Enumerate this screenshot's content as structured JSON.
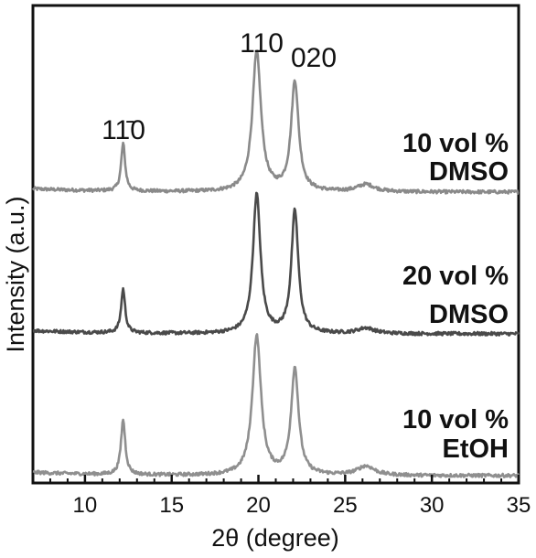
{
  "chart_data": {
    "type": "line",
    "xlabel": "2θ (degree)",
    "ylabel": "Intensity (a.u.)",
    "xlim": [
      7,
      35
    ],
    "x_ticks": [
      10,
      15,
      20,
      25,
      30,
      35
    ],
    "y_ticks_shown": false,
    "grid": false,
    "peak_labels": [
      {
        "text": "11̄0",
        "x": 12.2
      },
      {
        "text": "110",
        "x": 19.9
      },
      {
        "text": "020",
        "x": 22.1
      }
    ],
    "series": [
      {
        "label_line1": "10 vol %",
        "label_line2": "DMSO",
        "color": "#8a8a8a",
        "baseline": 0,
        "peaks": [
          {
            "x": 12.2,
            "height": 0.26,
            "width": 0.14
          },
          {
            "x": 19.9,
            "height": 0.76,
            "width": 0.3
          },
          {
            "x": 22.1,
            "height": 0.6,
            "width": 0.26
          },
          {
            "x": 26.2,
            "height": 0.04,
            "width": 0.6
          }
        ]
      },
      {
        "label_line1": "20 vol %",
        "label_line2": "DMSO",
        "color": "#4a4a4a",
        "baseline": 0,
        "peaks": [
          {
            "x": 12.2,
            "height": 0.24,
            "width": 0.14
          },
          {
            "x": 19.9,
            "height": 0.76,
            "width": 0.26
          },
          {
            "x": 22.1,
            "height": 0.67,
            "width": 0.24
          },
          {
            "x": 26.2,
            "height": 0.03,
            "width": 0.6
          }
        ]
      },
      {
        "label_line1": "10 vol %",
        "label_line2": "EtOH",
        "color": "#8f8f8f",
        "baseline": 0,
        "peaks": [
          {
            "x": 12.2,
            "height": 0.3,
            "width": 0.15
          },
          {
            "x": 19.9,
            "height": 0.76,
            "width": 0.3
          },
          {
            "x": 22.1,
            "height": 0.58,
            "width": 0.26
          },
          {
            "x": 26.2,
            "height": 0.05,
            "width": 0.6
          }
        ]
      }
    ]
  }
}
